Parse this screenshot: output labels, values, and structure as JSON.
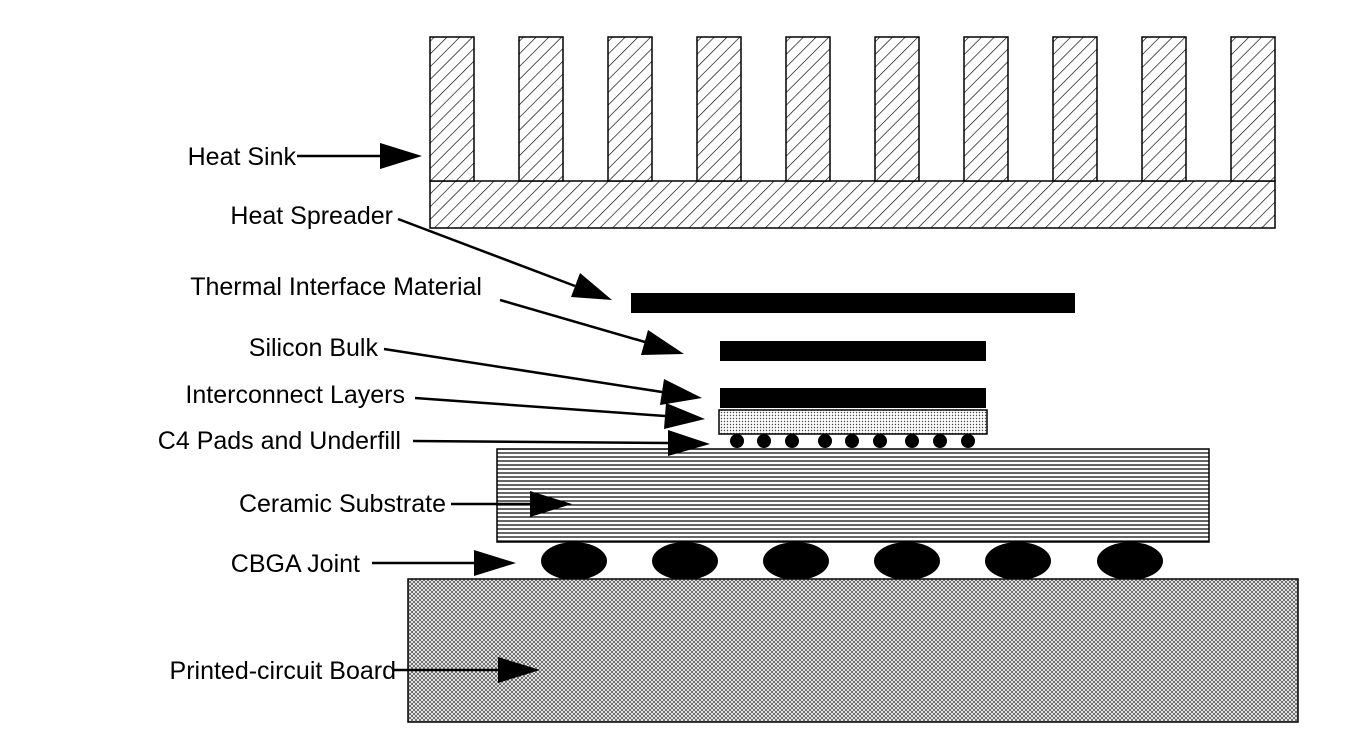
{
  "labels": {
    "heat_sink": "Heat Sink",
    "heat_spreader": "Heat Spreader",
    "tim": "Thermal Interface Material",
    "silicon_bulk": "Silicon Bulk",
    "interconnect": "Interconnect Layers",
    "c4": "C4 Pads and Underfill",
    "ceramic": "Ceramic Substrate",
    "cbga": "CBGA Joint",
    "pcb": "Printed-circuit Board"
  },
  "colors": {
    "stroke": "#000000",
    "fill_solid": "#000000",
    "background": "#ffffff"
  }
}
